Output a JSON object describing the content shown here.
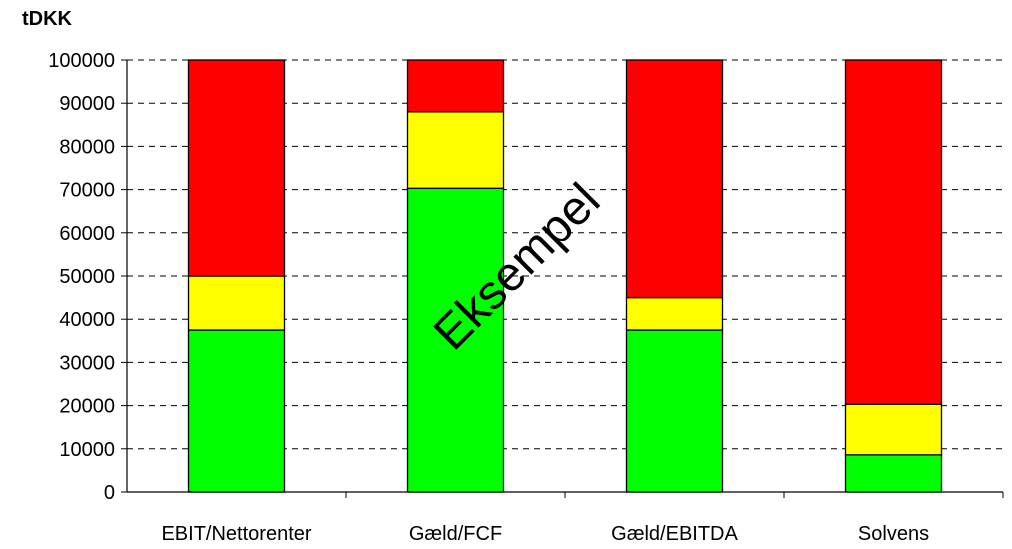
{
  "chart_data": {
    "type": "bar",
    "stacked": true,
    "title": "",
    "y_unit_label": "tDKK",
    "xlabel": "",
    "ylabel": "",
    "watermark": "Eksempel",
    "categories": [
      "EBIT/Nettorenter",
      "Gæld/FCF",
      "Gæld/EBITDA",
      "Solvens"
    ],
    "ylim": [
      0,
      100000
    ],
    "yticks": [
      0,
      10000,
      20000,
      30000,
      40000,
      50000,
      60000,
      70000,
      80000,
      90000,
      100000
    ],
    "grid": "horizontal dashed",
    "legend": "none",
    "series": [
      {
        "color": "#00ff00",
        "values": [
          37500,
          70300,
          37500,
          8600
        ]
      },
      {
        "color": "#ffff00",
        "values": [
          12500,
          17700,
          7500,
          11700
        ]
      },
      {
        "color": "#ff0000",
        "values": [
          50000,
          12000,
          55000,
          79700
        ]
      }
    ]
  }
}
